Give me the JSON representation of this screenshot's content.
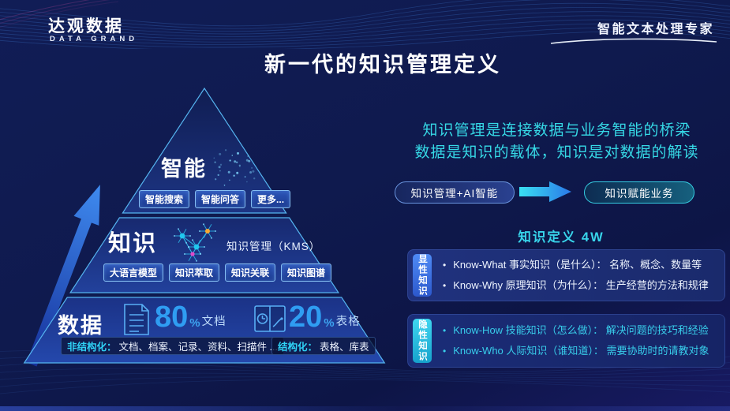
{
  "header": {
    "logo_cn": "达观数据",
    "logo_en": "DATA GRAND",
    "tagline": "智能文本处理专家"
  },
  "title": "新一代的知识管理定义",
  "pyramid": {
    "levels": {
      "top": {
        "label": "智能",
        "chips": [
          "智能搜索",
          "智能问答",
          "更多..."
        ]
      },
      "middle": {
        "label": "知识",
        "kms": "知识管理（KMS）",
        "chips": [
          "大语言模型",
          "知识萃取",
          "知识关联",
          "知识图谱"
        ]
      },
      "bottom": {
        "label": "数据"
      }
    },
    "stats": [
      {
        "value": "80",
        "percent": "%",
        "label": "文档"
      },
      {
        "value": "20",
        "percent": "%",
        "label": "表格"
      }
    ],
    "tags": [
      {
        "label": "非结构化：",
        "items": "文档、档案、记录、资料、扫描件 ..."
      },
      {
        "label": "结构化：",
        "items": "表格、库表"
      }
    ]
  },
  "right": {
    "intro_line1": "知识管理是连接数据与业务智能的桥梁",
    "intro_line2": "数据是知识的载体，知识是对数据的解读",
    "pill_left": "知识管理+AI智能",
    "pill_right": "知识赋能业务",
    "section_title": "知识定义 4W",
    "boxes": [
      {
        "tab": "显性知识",
        "bullets": [
          "Know-What 事实知识（是什么）： 名称、概念、数量等",
          "Know-Why 原理知识（为什么）： 生产经营的方法和规律"
        ]
      },
      {
        "tab": "隐性知识",
        "bullets": [
          "Know-How 技能知识（怎么做）： 解决问题的技巧和经验",
          "Know-Who 人际知识（谁知道）： 需要协助时的请教对象"
        ]
      }
    ]
  },
  "colors": {
    "accent_cyan": "#38d4ea",
    "stat_blue": "#2f9df2",
    "chip_border": "#85bdf2",
    "pill_right_border": "#35cde2",
    "tab_explicit": "#3c74e8",
    "tab_tacit": "#2bc4e4",
    "background": "#0f1a4e"
  }
}
